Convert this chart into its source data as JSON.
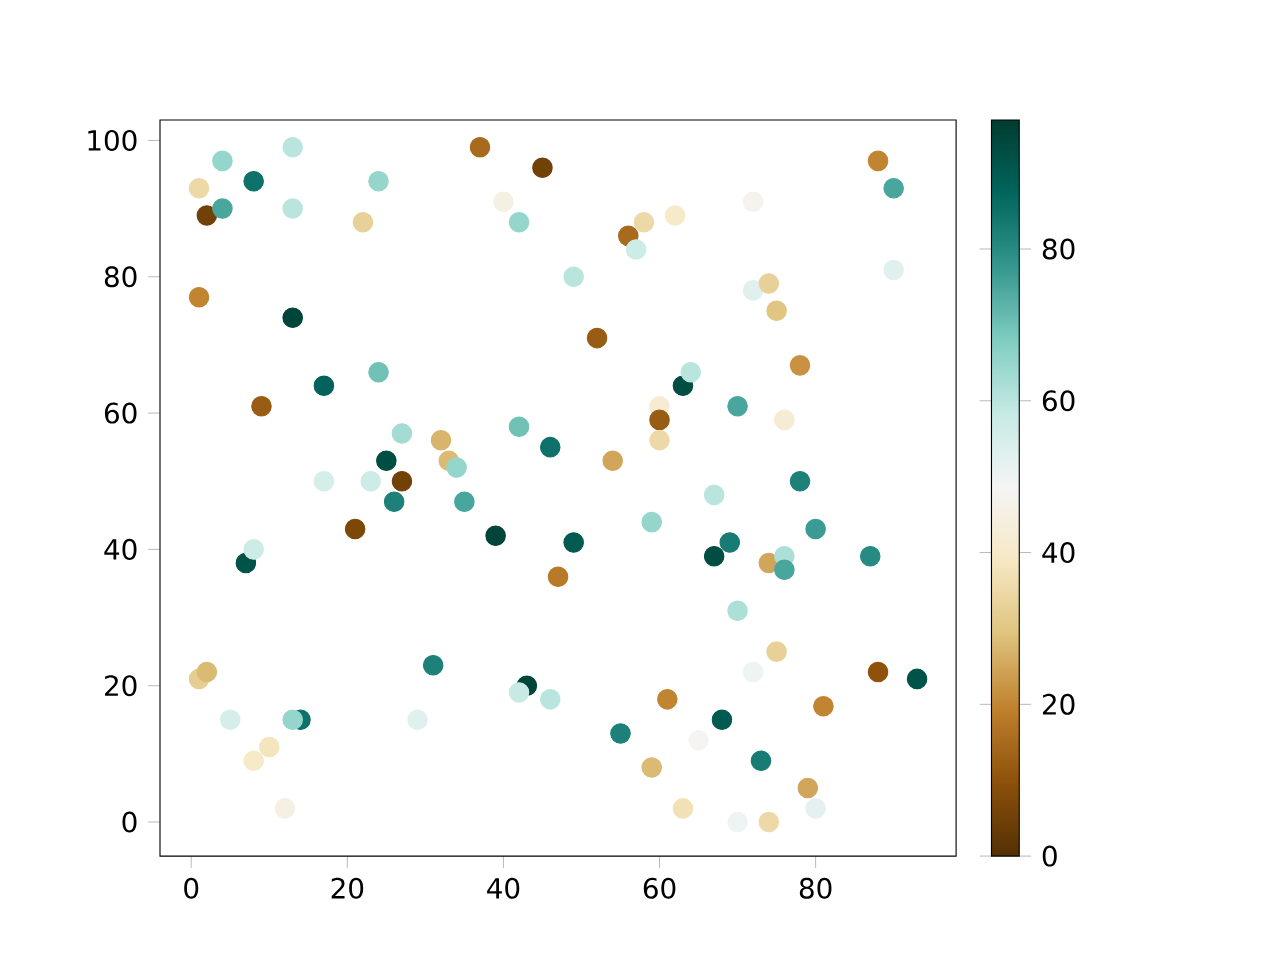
{
  "chart_data": {
    "type": "scatter",
    "marker": "circle",
    "xlim": [
      -4,
      98
    ],
    "ylim": [
      -5,
      103
    ],
    "xticks": [
      0,
      20,
      40,
      60,
      80
    ],
    "yticks": [
      0,
      20,
      40,
      60,
      80,
      100
    ],
    "clim": [
      0,
      97
    ],
    "cticks": [
      0,
      20,
      40,
      60,
      80
    ],
    "series": [
      {
        "x": [
          1,
          2,
          4,
          4,
          8,
          13,
          13,
          24,
          22,
          37,
          45,
          40,
          42,
          1,
          13,
          9,
          17,
          24,
          21,
          27,
          32,
          33,
          34,
          25,
          27,
          23,
          17,
          26,
          35,
          39,
          46,
          42,
          49,
          52,
          56,
          58,
          57,
          62,
          72,
          72,
          74,
          75,
          78,
          88,
          90,
          90,
          63,
          64,
          60,
          60,
          60,
          54,
          70,
          76,
          49,
          47,
          59,
          67,
          67,
          69,
          74,
          76,
          76,
          78,
          80,
          87,
          7,
          8,
          1,
          2,
          5,
          14,
          13,
          8,
          10,
          12,
          29,
          31,
          43,
          42,
          46,
          55,
          61,
          59,
          63,
          65,
          68,
          70,
          72,
          75,
          73,
          70,
          74,
          79,
          81,
          80,
          88,
          93
        ],
        "values": [
          93,
          89,
          97,
          90,
          94,
          99,
          90,
          94,
          88,
          99,
          96,
          91,
          88,
          77,
          74,
          61,
          64,
          66,
          43,
          57,
          56,
          53,
          52,
          53,
          50,
          50,
          50,
          47,
          47,
          42,
          55,
          58,
          80,
          71,
          86,
          88,
          84,
          89,
          91,
          78,
          79,
          75,
          67,
          97,
          93,
          81,
          64,
          66,
          61,
          59,
          56,
          53,
          61,
          59,
          41,
          36,
          44,
          48,
          39,
          41,
          38,
          39,
          37,
          50,
          43,
          39,
          38,
          40,
          21,
          22,
          15,
          15,
          15,
          9,
          11,
          2,
          15,
          23,
          20,
          19,
          18,
          13,
          18,
          8,
          2,
          12,
          15,
          31,
          22,
          25,
          9,
          0,
          0,
          5,
          17,
          2,
          22,
          21
        ],
        "cvalues": [
          35,
          5,
          65,
          75,
          85,
          60,
          60,
          65,
          33,
          15,
          5,
          45,
          65,
          20,
          95,
          12,
          88,
          70,
          7,
          63,
          27,
          28,
          65,
          93,
          5,
          57,
          55,
          82,
          75,
          95,
          85,
          70,
          60,
          12,
          15,
          35,
          57,
          40,
          47,
          53,
          33,
          30,
          22,
          20,
          75,
          53,
          93,
          60,
          42,
          12,
          35,
          25,
          75,
          42,
          90,
          18,
          65,
          60,
          93,
          83,
          25,
          62,
          75,
          82,
          77,
          80,
          92,
          57,
          32,
          28,
          55,
          85,
          65,
          40,
          38,
          45,
          53,
          82,
          95,
          58,
          60,
          82,
          20,
          28,
          37,
          48,
          90,
          62,
          50,
          33,
          83,
          50,
          35,
          25,
          20,
          52,
          10,
          92
        ]
      }
    ]
  }
}
